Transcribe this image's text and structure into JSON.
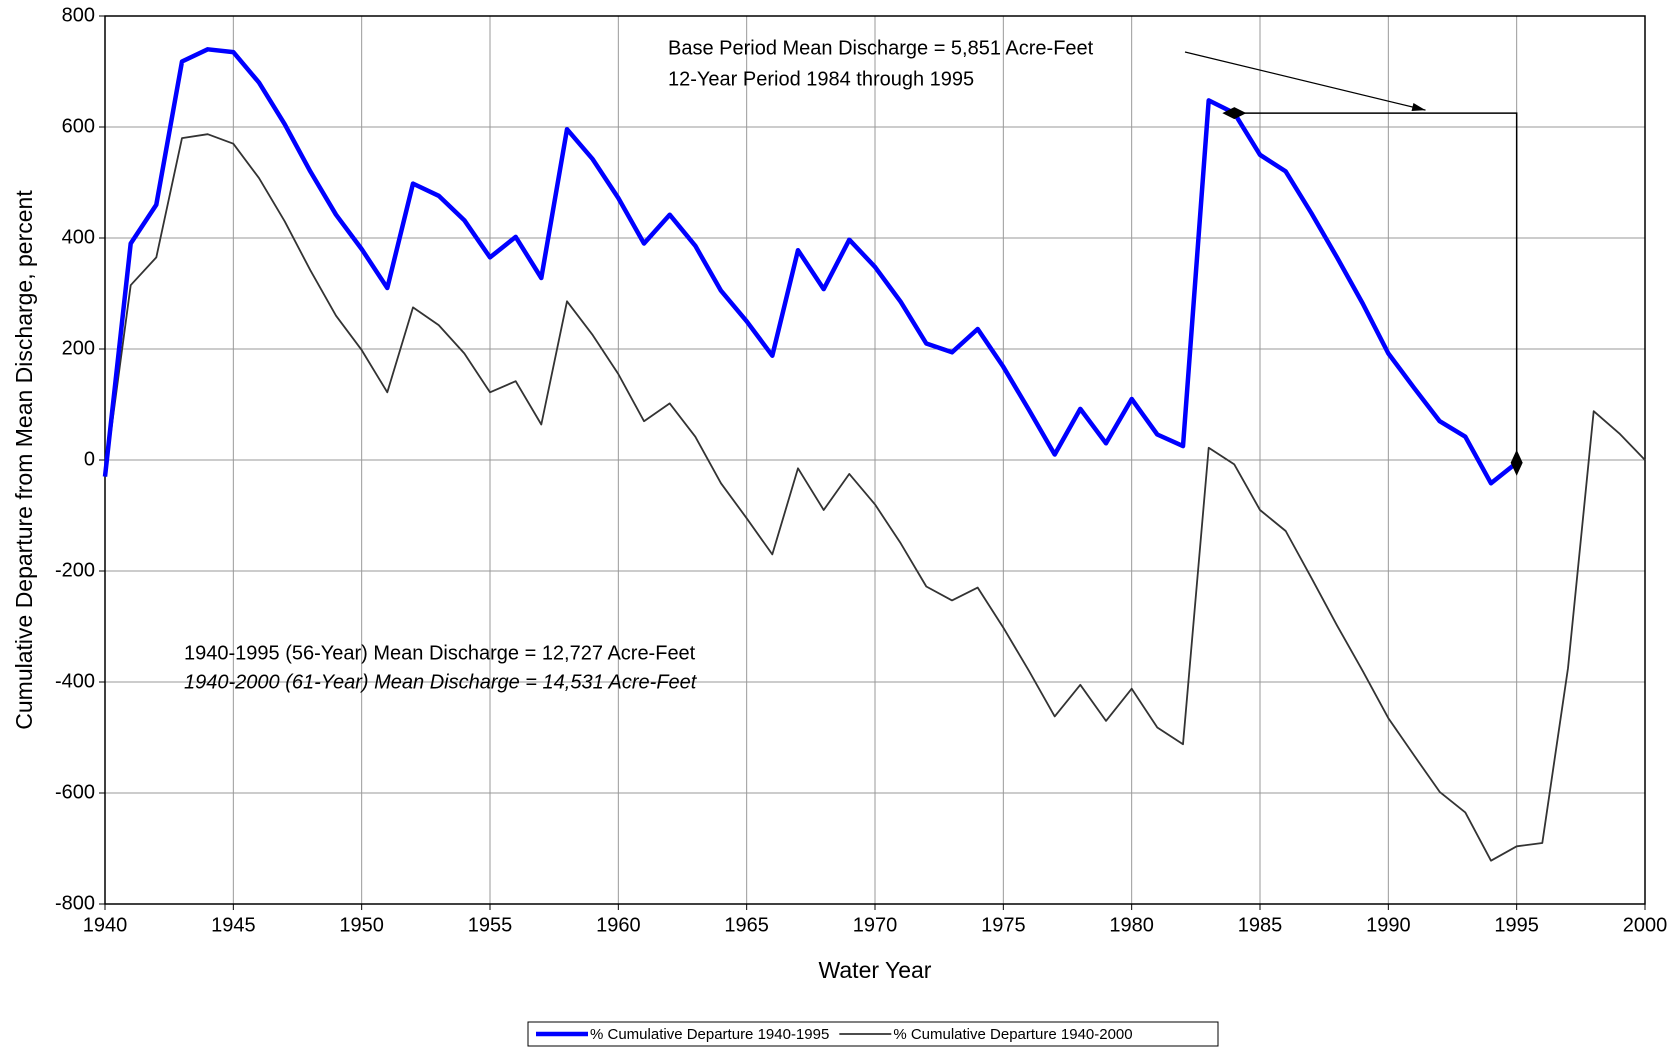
{
  "chart_data": {
    "type": "line",
    "x": [
      1940,
      1941,
      1942,
      1943,
      1944,
      1945,
      1946,
      1947,
      1948,
      1949,
      1950,
      1951,
      1952,
      1953,
      1954,
      1955,
      1956,
      1957,
      1958,
      1959,
      1960,
      1961,
      1962,
      1963,
      1964,
      1965,
      1966,
      1967,
      1968,
      1969,
      1970,
      1971,
      1972,
      1973,
      1974,
      1975,
      1976,
      1977,
      1978,
      1979,
      1980,
      1981,
      1982,
      1983,
      1984,
      1985,
      1986,
      1987,
      1988,
      1989,
      1990,
      1991,
      1992,
      1993,
      1994,
      1995,
      1996,
      1997,
      1998,
      1999,
      2000
    ],
    "series": [
      {
        "name": "% Cumulative Departure 1940-1995",
        "color": "#0000ff",
        "values": [
          -30,
          390,
          460,
          718,
          740,
          735,
          680,
          605,
          520,
          442,
          380,
          310,
          498,
          476,
          432,
          365,
          402,
          328,
          596,
          542,
          472,
          390,
          442,
          386,
          305,
          250,
          188,
          378,
          308,
          397,
          348,
          285,
          210,
          194,
          236,
          168,
          90,
          10,
          92,
          30,
          110,
          46,
          25,
          648,
          625,
          550,
          520,
          445,
          365,
          282,
          192,
          130,
          70,
          42,
          -42,
          -5,
          null,
          null,
          null,
          null,
          null
        ]
      },
      {
        "name": "% Cumulative Departure 1940-2000",
        "color": "#333333",
        "values": [
          -30,
          315,
          365,
          580,
          587,
          570,
          508,
          430,
          342,
          260,
          198,
          122,
          275,
          243,
          192,
          122,
          142,
          64,
          286,
          225,
          155,
          70,
          102,
          42,
          -42,
          -105,
          -170,
          -15,
          -90,
          -25,
          -80,
          -150,
          -228,
          -253,
          -230,
          -302,
          -380,
          -462,
          -405,
          -470,
          -412,
          -482,
          -512,
          22,
          -8,
          -90,
          -128,
          -212,
          -298,
          -380,
          -465,
          -532,
          -598,
          -635,
          -722,
          -696,
          -690,
          -375,
          88,
          48,
          0
        ]
      }
    ],
    "xlabel": "Water Year",
    "ylabel": "Cumulative Departure from Mean Discharge, percent",
    "xlim": [
      1940,
      2000
    ],
    "xticks": [
      1940,
      1945,
      1950,
      1955,
      1960,
      1965,
      1970,
      1975,
      1980,
      1985,
      1990,
      1995,
      2000
    ],
    "ylim": [
      -800,
      800
    ],
    "yticks": [
      -800,
      -600,
      -400,
      -200,
      0,
      200,
      400,
      600,
      800
    ],
    "grid": true,
    "annotations": [
      "Base Period Mean Discharge = 5,851 Acre-Feet",
      "12-Year Period 1984 through 1995",
      "1940-1995 (56-Year) Mean Discharge = 12,727 Acre-Feet",
      "1940-2000 (61-Year) Mean Discharge = 14,531 Acre-Feet"
    ],
    "legend": "bottom"
  }
}
